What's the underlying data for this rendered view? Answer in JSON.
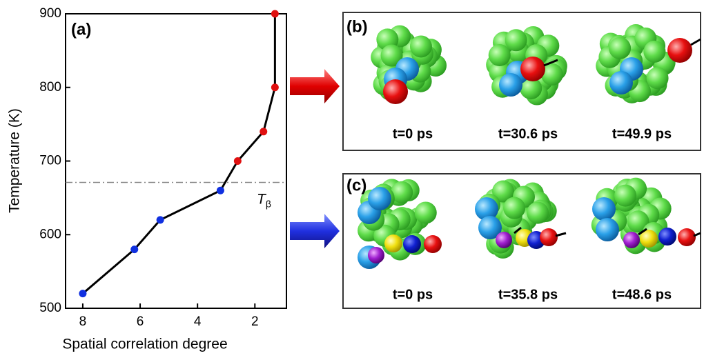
{
  "chart_data": {
    "type": "line",
    "panel_label": "(a)",
    "x_label": "Spatial correlation degree",
    "y_label": "Temperature (K)",
    "x": [
      8.0,
      6.2,
      5.3,
      3.2,
      2.6,
      1.7,
      1.3,
      1.3
    ],
    "values": [
      520,
      580,
      620,
      660,
      700,
      740,
      800,
      900
    ],
    "line_color": "#000000",
    "point_colors": [
      "#1030e0",
      "#1030e0",
      "#1030e0",
      "#1030e0",
      "#e01010",
      "#e01010",
      "#e01010",
      "#e01010"
    ],
    "xlim": [
      8.6,
      0.9
    ],
    "ylim": [
      500,
      900
    ],
    "xticks": [
      8,
      6,
      4,
      2
    ],
    "yticks": [
      500,
      600,
      700,
      800,
      900
    ],
    "threshold": {
      "value": 671,
      "label": "T",
      "subscript": "β"
    }
  },
  "panels": [
    {
      "label": "(b)",
      "times": [
        "t=0 ps",
        "t=30.6 ps",
        "t=49.9 ps"
      ]
    },
    {
      "label": "(c)",
      "times": [
        "t=0 ps",
        "t=35.8 ps",
        "t=48.6 ps"
      ]
    }
  ]
}
